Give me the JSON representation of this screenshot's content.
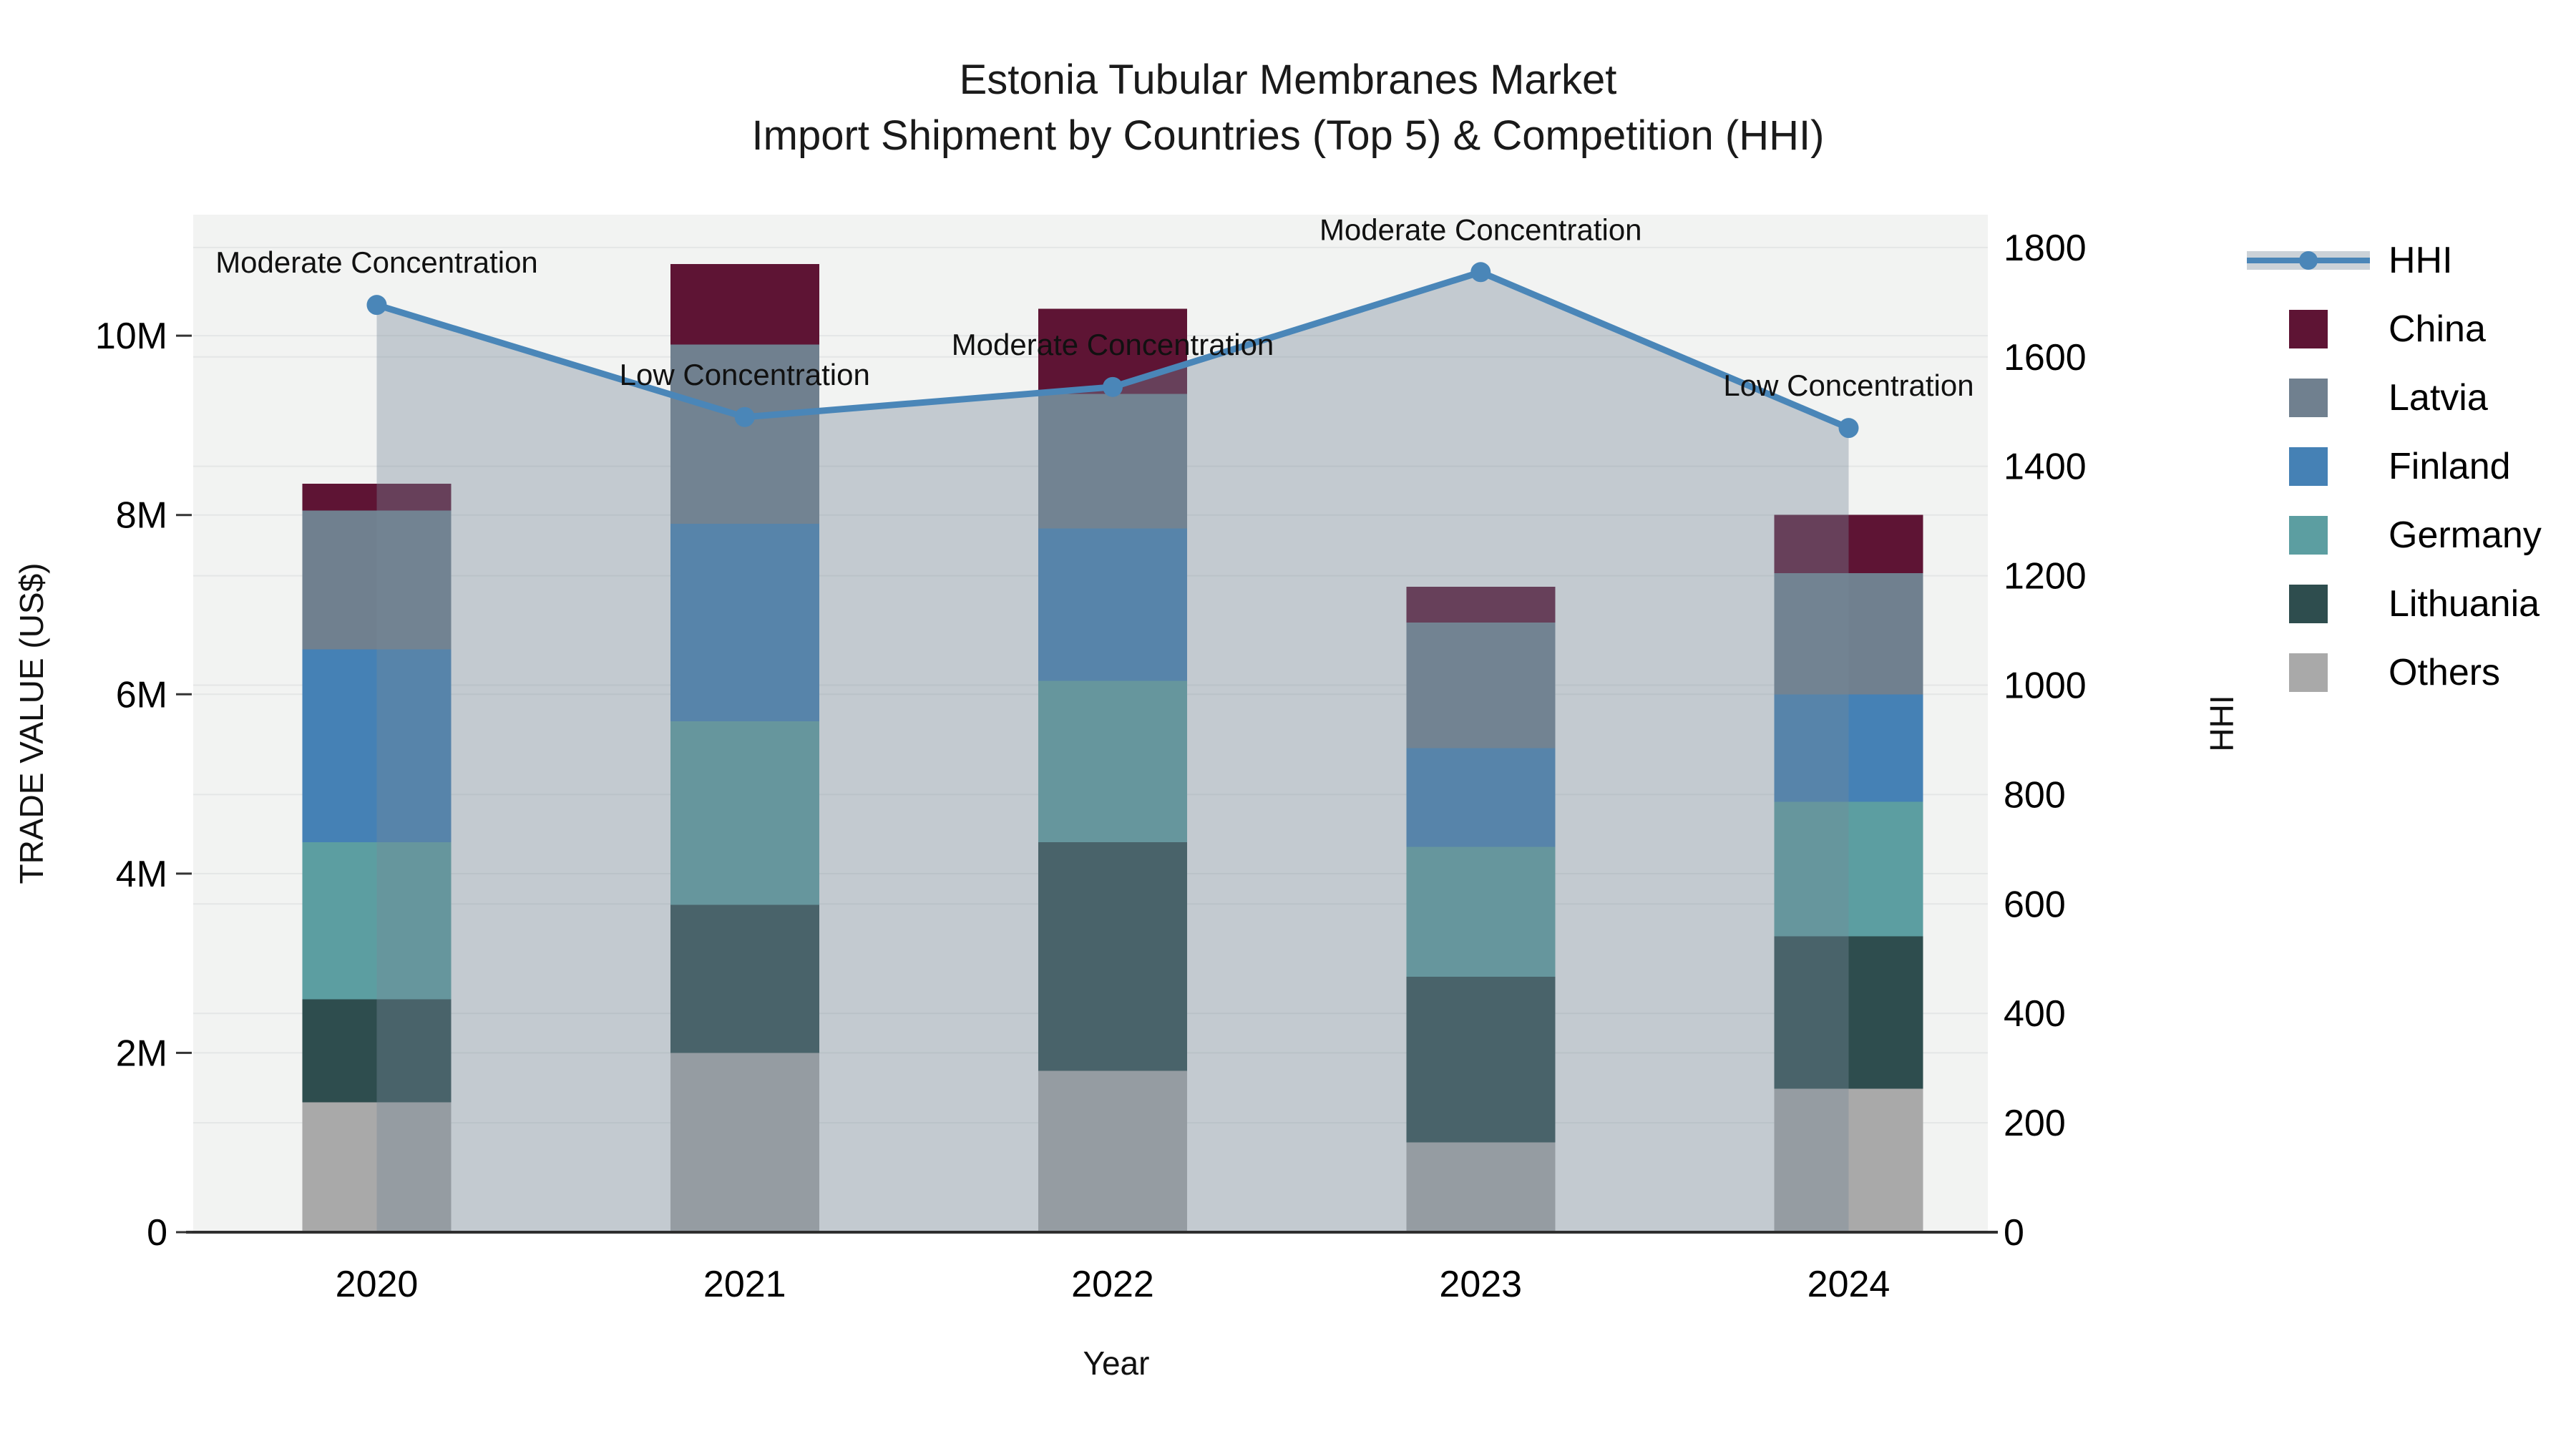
{
  "title": {
    "line1": "Estonia Tubular Membranes Market",
    "line2": "Import Shipment by Countries (Top 5) & Competition (HHI)"
  },
  "colors": {
    "china": "#5e1434",
    "latvia": "#70808f",
    "finland": "#4581b5",
    "germany": "#5c9ea1",
    "lithuania": "#2e4d4e",
    "others": "#a9a9a9",
    "hhi_line": "#4a86b8",
    "hhi_area_fill": "rgba(119,136,153,0.38)",
    "plot_background": "#f2f3f2",
    "gridline": "#e4e6e6",
    "axis_line": "#2f2f2f"
  },
  "chart_data": {
    "type": "bar",
    "subtype": "stacked-bars-with-line-overlay",
    "categories": [
      "2020",
      "2021",
      "2022",
      "2023",
      "2024"
    ],
    "series": [
      {
        "name": "Others",
        "color": "#a9a9a9",
        "values": [
          1.45,
          2.0,
          1.8,
          1.0,
          1.6
        ]
      },
      {
        "name": "Lithuania",
        "color": "#2e4d4e",
        "values": [
          1.15,
          1.65,
          2.55,
          1.85,
          1.7
        ]
      },
      {
        "name": "Germany",
        "color": "#5c9ea1",
        "values": [
          1.75,
          2.05,
          1.8,
          1.45,
          1.5
        ]
      },
      {
        "name": "Finland",
        "color": "#4581b5",
        "values": [
          2.15,
          2.2,
          1.7,
          1.1,
          1.2
        ]
      },
      {
        "name": "Latvia",
        "color": "#70808f",
        "values": [
          1.55,
          2.0,
          1.5,
          1.4,
          1.35
        ]
      },
      {
        "name": "China",
        "color": "#5e1434",
        "values": [
          0.3,
          0.9,
          0.95,
          0.4,
          0.65
        ]
      }
    ],
    "bar_totals_musd": [
      8.35,
      10.8,
      10.3,
      7.2,
      8.0
    ],
    "line_series": {
      "name": "HHI",
      "color": "#4a86b8",
      "values": [
        1695,
        1490,
        1545,
        1755,
        1470
      ],
      "area_fill": "rgba(119,136,153,0.38)"
    },
    "annotations": [
      {
        "year": "2020",
        "text": "Moderate Concentration"
      },
      {
        "year": "2021",
        "text": "Low Concentration"
      },
      {
        "year": "2022",
        "text": "Moderate Concentration"
      },
      {
        "year": "2023",
        "text": "Moderate Concentration"
      },
      {
        "year": "2024",
        "text": "Low Concentration"
      }
    ],
    "title": "Estonia Tubular Membranes Market Import Shipment by Countries (Top 5) & Competition (HHI)",
    "xlabel": "Year",
    "ylabel_left": "TRADE VALUE (US$)",
    "ylabel_right": "HHI",
    "ylim_left": [
      0,
      11.35
    ],
    "ylim_right": [
      0,
      1860
    ],
    "grid": true,
    "legend_position": "right"
  },
  "axes": {
    "x": {
      "label": "Year",
      "tick_labels": [
        "2020",
        "2021",
        "2022",
        "2023",
        "2024"
      ]
    },
    "y_left": {
      "label": "TRADE VALUE (US$)",
      "ticks": [
        {
          "v": 0,
          "label": "0"
        },
        {
          "v": 2,
          "label": "2M"
        },
        {
          "v": 4,
          "label": "4M"
        },
        {
          "v": 6,
          "label": "6M"
        },
        {
          "v": 8,
          "label": "8M"
        },
        {
          "v": 10,
          "label": "10M"
        }
      ]
    },
    "y_right": {
      "label": "HHI",
      "ticks": [
        {
          "v": 0,
          "label": "0"
        },
        {
          "v": 200,
          "label": "200"
        },
        {
          "v": 400,
          "label": "400"
        },
        {
          "v": 600,
          "label": "600"
        },
        {
          "v": 800,
          "label": "800"
        },
        {
          "v": 1000,
          "label": "1000"
        },
        {
          "v": 1200,
          "label": "1200"
        },
        {
          "v": 1400,
          "label": "1400"
        },
        {
          "v": 1600,
          "label": "1600"
        },
        {
          "v": 1800,
          "label": "1800"
        }
      ]
    }
  },
  "legend": {
    "items": [
      {
        "label": "HHI",
        "type": "line",
        "color": "#4a86b8"
      },
      {
        "label": "China",
        "type": "swatch",
        "color": "#5e1434"
      },
      {
        "label": "Latvia",
        "type": "swatch",
        "color": "#70808f"
      },
      {
        "label": "Finland",
        "type": "swatch",
        "color": "#4581b5"
      },
      {
        "label": "Germany",
        "type": "swatch",
        "color": "#5c9ea1"
      },
      {
        "label": "Lithuania",
        "type": "swatch",
        "color": "#2e4d4e"
      },
      {
        "label": "Others",
        "type": "swatch",
        "color": "#a9a9a9"
      }
    ]
  }
}
